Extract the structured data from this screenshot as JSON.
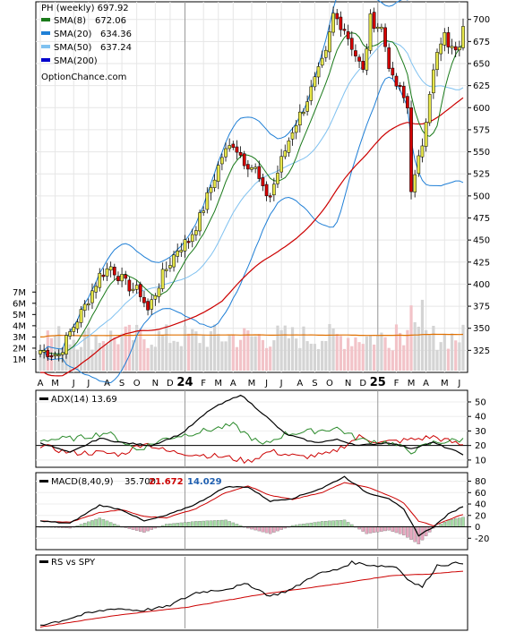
{
  "chart_data": {
    "type": "candlestick-stack",
    "title": "PH (weekly) 697.92",
    "watermark": "OptionChance.com",
    "colors": {
      "sma8": "#1a7a1a",
      "sma20": "#1f7fd6",
      "sma50": "#7fc1f0",
      "sma200": "#cc0000",
      "sma200_legend": "#0000cc",
      "up_candle": "#e6e64a",
      "down_candle": "#d40000",
      "volume_up": "#d4d4d4",
      "volume_down": "#f2c3c8",
      "volume_avg": "#e07000",
      "adx": "#000000",
      "plus_di": "#2a8a2a",
      "minus_di": "#cc0000",
      "macd": "#000000",
      "signal": "#cc0000",
      "hist_pos": "#a6dca6",
      "hist_neg": "#e8a8c0",
      "rs": "#000000",
      "rs_ma": "#cc0000"
    },
    "price_panel": {
      "legend": [
        {
          "name": "SMA(8)",
          "value": "672.06",
          "color": "#1a7a1a"
        },
        {
          "name": "SMA(20)",
          "value": "634.36",
          "color": "#1f7fd6"
        },
        {
          "name": "SMA(50)",
          "value": "637.24",
          "color": "#7fc1f0"
        },
        {
          "name": "SMA(200)",
          "value": "",
          "color": "#0000cc"
        }
      ],
      "ylim": [
        300,
        720
      ],
      "yticks": [
        325,
        350,
        375,
        400,
        425,
        450,
        475,
        500,
        525,
        550,
        575,
        600,
        625,
        650,
        675,
        700
      ],
      "anchors": [
        {
          "i": 0,
          "p": 325
        },
        {
          "i": 5,
          "p": 320
        },
        {
          "i": 8,
          "p": 345
        },
        {
          "i": 12,
          "p": 375
        },
        {
          "i": 16,
          "p": 410
        },
        {
          "i": 19,
          "p": 420
        },
        {
          "i": 23,
          "p": 400
        },
        {
          "i": 27,
          "p": 390
        },
        {
          "i": 29,
          "p": 370
        },
        {
          "i": 33,
          "p": 410
        },
        {
          "i": 37,
          "p": 440
        },
        {
          "i": 40,
          "p": 450
        },
        {
          "i": 43,
          "p": 475
        },
        {
          "i": 46,
          "p": 510
        },
        {
          "i": 49,
          "p": 545
        },
        {
          "i": 52,
          "p": 560
        },
        {
          "i": 55,
          "p": 540
        },
        {
          "i": 58,
          "p": 530
        },
        {
          "i": 60,
          "p": 505
        },
        {
          "i": 62,
          "p": 500
        },
        {
          "i": 65,
          "p": 540
        },
        {
          "i": 68,
          "p": 575
        },
        {
          "i": 71,
          "p": 600
        },
        {
          "i": 74,
          "p": 630
        },
        {
          "i": 77,
          "p": 660
        },
        {
          "i": 79,
          "p": 705
        },
        {
          "i": 82,
          "p": 690
        },
        {
          "i": 85,
          "p": 660
        },
        {
          "i": 87,
          "p": 640
        },
        {
          "i": 89,
          "p": 700
        },
        {
          "i": 92,
          "p": 690
        },
        {
          "i": 95,
          "p": 630
        },
        {
          "i": 97,
          "p": 620
        },
        {
          "i": 99,
          "p": 600
        },
        {
          "i": 100,
          "p": 510
        },
        {
          "i": 101,
          "p": 520
        },
        {
          "i": 103,
          "p": 560
        },
        {
          "i": 105,
          "p": 620
        },
        {
          "i": 107,
          "p": 660
        },
        {
          "i": 109,
          "p": 680
        },
        {
          "i": 111,
          "p": 665
        },
        {
          "i": 113,
          "p": 675
        },
        {
          "i": 114,
          "p": 698
        }
      ]
    },
    "volume_panel": {
      "ylim": [
        0,
        7.5
      ],
      "yticks": [
        "1M",
        "2M",
        "3M",
        "4M",
        "5M",
        "6M",
        "7M"
      ],
      "avg_level": 3.2
    },
    "x_axis": {
      "labels": [
        {
          "text": "A",
          "i": 0
        },
        {
          "text": "M",
          "i": 4
        },
        {
          "text": "J",
          "i": 9
        },
        {
          "text": "J",
          "i": 13
        },
        {
          "text": "A",
          "i": 18
        },
        {
          "text": "S",
          "i": 22
        },
        {
          "text": "O",
          "i": 26
        },
        {
          "text": "N",
          "i": 31
        },
        {
          "text": "D",
          "i": 35
        },
        {
          "text": "24",
          "i": 39,
          "year": true
        },
        {
          "text": "F",
          "i": 44
        },
        {
          "text": "M",
          "i": 48
        },
        {
          "text": "A",
          "i": 52
        },
        {
          "text": "M",
          "i": 57
        },
        {
          "text": "J",
          "i": 61
        },
        {
          "text": "J",
          "i": 65
        },
        {
          "text": "A",
          "i": 70
        },
        {
          "text": "S",
          "i": 74
        },
        {
          "text": "O",
          "i": 78
        },
        {
          "text": "N",
          "i": 83
        },
        {
          "text": "D",
          "i": 87
        },
        {
          "text": "25",
          "i": 91,
          "year": true
        },
        {
          "text": "F",
          "i": 96
        },
        {
          "text": "M",
          "i": 100
        },
        {
          "text": "A",
          "i": 104
        },
        {
          "text": "M",
          "i": 109
        },
        {
          "text": "J",
          "i": 113
        }
      ],
      "year_lines": [
        39,
        91
      ]
    },
    "adx_panel": {
      "label": "ADX(14) 13.69",
      "ylim": [
        5,
        58
      ],
      "yticks": [
        10,
        20,
        30,
        40,
        50
      ],
      "adx_anchors": [
        {
          "i": 0,
          "p": 22
        },
        {
          "i": 8,
          "p": 15
        },
        {
          "i": 16,
          "p": 25
        },
        {
          "i": 22,
          "p": 22
        },
        {
          "i": 30,
          "p": 20
        },
        {
          "i": 38,
          "p": 28
        },
        {
          "i": 46,
          "p": 45
        },
        {
          "i": 54,
          "p": 55
        },
        {
          "i": 60,
          "p": 42
        },
        {
          "i": 66,
          "p": 28
        },
        {
          "i": 74,
          "p": 22
        },
        {
          "i": 80,
          "p": 24
        },
        {
          "i": 86,
          "p": 20
        },
        {
          "i": 94,
          "p": 22
        },
        {
          "i": 100,
          "p": 18
        },
        {
          "i": 106,
          "p": 22
        },
        {
          "i": 114,
          "p": 14
        }
      ],
      "plus_anchors": [
        {
          "i": 0,
          "p": 24
        },
        {
          "i": 10,
          "p": 25
        },
        {
          "i": 18,
          "p": 29
        },
        {
          "i": 26,
          "p": 17
        },
        {
          "i": 34,
          "p": 25
        },
        {
          "i": 44,
          "p": 30
        },
        {
          "i": 52,
          "p": 34
        },
        {
          "i": 60,
          "p": 20
        },
        {
          "i": 66,
          "p": 28
        },
        {
          "i": 74,
          "p": 30
        },
        {
          "i": 80,
          "p": 32
        },
        {
          "i": 86,
          "p": 24
        },
        {
          "i": 94,
          "p": 22
        },
        {
          "i": 100,
          "p": 16
        },
        {
          "i": 106,
          "p": 22
        },
        {
          "i": 114,
          "p": 24
        }
      ],
      "minus_anchors": [
        {
          "i": 0,
          "p": 20
        },
        {
          "i": 8,
          "p": 15
        },
        {
          "i": 16,
          "p": 15
        },
        {
          "i": 22,
          "p": 14
        },
        {
          "i": 28,
          "p": 22
        },
        {
          "i": 34,
          "p": 16
        },
        {
          "i": 42,
          "p": 14
        },
        {
          "i": 50,
          "p": 12
        },
        {
          "i": 56,
          "p": 9
        },
        {
          "i": 62,
          "p": 16
        },
        {
          "i": 70,
          "p": 12
        },
        {
          "i": 78,
          "p": 14
        },
        {
          "i": 86,
          "p": 26
        },
        {
          "i": 92,
          "p": 22
        },
        {
          "i": 100,
          "p": 24
        },
        {
          "i": 106,
          "p": 26
        },
        {
          "i": 114,
          "p": 20
        }
      ],
      "ref_level": 20
    },
    "macd_panel": {
      "label": "MACD(8,40,9)",
      "macd_value": "35.700",
      "signal_value": "21.672",
      "hist_value": "14.029",
      "ylim": [
        -40,
        95
      ],
      "yticks": [
        -20,
        0,
        20,
        40,
        60,
        80
      ],
      "macd_anchors": [
        {
          "i": 0,
          "p": 10
        },
        {
          "i": 8,
          "p": 6
        },
        {
          "i": 16,
          "p": 38
        },
        {
          "i": 22,
          "p": 30
        },
        {
          "i": 28,
          "p": 10
        },
        {
          "i": 34,
          "p": 20
        },
        {
          "i": 42,
          "p": 40
        },
        {
          "i": 50,
          "p": 70
        },
        {
          "i": 56,
          "p": 70
        },
        {
          "i": 62,
          "p": 45
        },
        {
          "i": 68,
          "p": 50
        },
        {
          "i": 76,
          "p": 68
        },
        {
          "i": 82,
          "p": 88
        },
        {
          "i": 88,
          "p": 60
        },
        {
          "i": 94,
          "p": 50
        },
        {
          "i": 98,
          "p": 30
        },
        {
          "i": 102,
          "p": -15
        },
        {
          "i": 106,
          "p": 0
        },
        {
          "i": 110,
          "p": 22
        },
        {
          "i": 114,
          "p": 36
        }
      ],
      "signal_anchors": [
        {
          "i": 0,
          "p": 10
        },
        {
          "i": 8,
          "p": 8
        },
        {
          "i": 16,
          "p": 25
        },
        {
          "i": 22,
          "p": 30
        },
        {
          "i": 28,
          "p": 18
        },
        {
          "i": 34,
          "p": 16
        },
        {
          "i": 42,
          "p": 32
        },
        {
          "i": 50,
          "p": 60
        },
        {
          "i": 56,
          "p": 72
        },
        {
          "i": 62,
          "p": 55
        },
        {
          "i": 68,
          "p": 48
        },
        {
          "i": 76,
          "p": 60
        },
        {
          "i": 82,
          "p": 78
        },
        {
          "i": 88,
          "p": 70
        },
        {
          "i": 94,
          "p": 55
        },
        {
          "i": 98,
          "p": 42
        },
        {
          "i": 102,
          "p": 10
        },
        {
          "i": 106,
          "p": 2
        },
        {
          "i": 110,
          "p": 12
        },
        {
          "i": 114,
          "p": 22
        }
      ]
    },
    "rs_panel": {
      "label": "RS vs SPY",
      "rs_anchors": [
        {
          "i": 0,
          "p": 0.05
        },
        {
          "i": 5,
          "p": 0.1
        },
        {
          "i": 12,
          "p": 0.2
        },
        {
          "i": 20,
          "p": 0.28
        },
        {
          "i": 27,
          "p": 0.25
        },
        {
          "i": 34,
          "p": 0.3
        },
        {
          "i": 42,
          "p": 0.5
        },
        {
          "i": 50,
          "p": 0.55
        },
        {
          "i": 56,
          "p": 0.62
        },
        {
          "i": 62,
          "p": 0.45
        },
        {
          "i": 68,
          "p": 0.55
        },
        {
          "i": 74,
          "p": 0.75
        },
        {
          "i": 80,
          "p": 0.82
        },
        {
          "i": 84,
          "p": 0.92
        },
        {
          "i": 90,
          "p": 0.88
        },
        {
          "i": 96,
          "p": 0.86
        },
        {
          "i": 100,
          "p": 0.65
        },
        {
          "i": 103,
          "p": 0.58
        },
        {
          "i": 107,
          "p": 0.88
        },
        {
          "i": 111,
          "p": 0.9
        },
        {
          "i": 114,
          "p": 0.92
        }
      ],
      "ma_anchors": [
        {
          "i": 0,
          "p": 0.02
        },
        {
          "i": 20,
          "p": 0.18
        },
        {
          "i": 40,
          "p": 0.3
        },
        {
          "i": 60,
          "p": 0.48
        },
        {
          "i": 80,
          "p": 0.62
        },
        {
          "i": 95,
          "p": 0.74
        },
        {
          "i": 105,
          "p": 0.76
        },
        {
          "i": 114,
          "p": 0.8
        }
      ]
    }
  }
}
